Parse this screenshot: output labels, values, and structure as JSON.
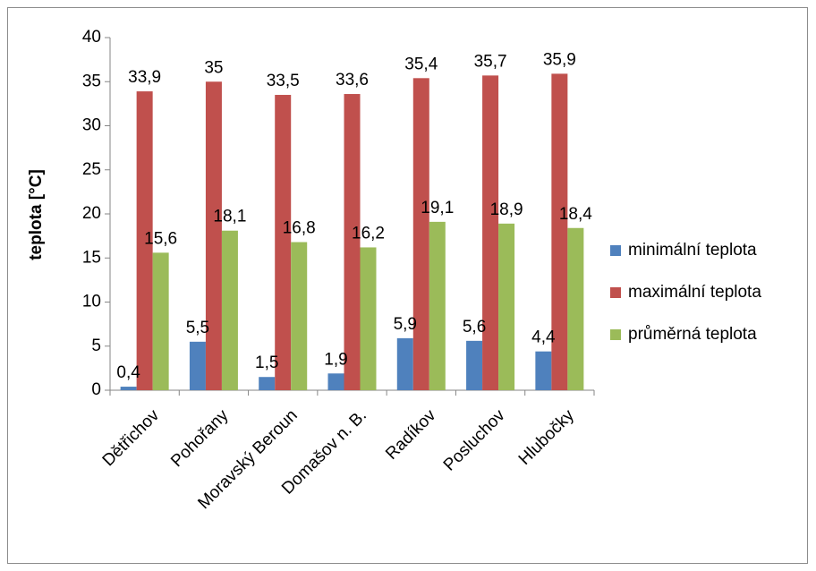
{
  "chart_data": {
    "type": "bar",
    "title": "",
    "xlabel": "",
    "ylabel": "teplota [°C]",
    "ylim": [
      0,
      40
    ],
    "yticks": [
      "0",
      "5",
      "10",
      "15",
      "20",
      "25",
      "30",
      "35",
      "40"
    ],
    "grid": false,
    "legend_position": "right",
    "categories": [
      "Dětřichov",
      "Pohořany",
      "Moravský Beroun",
      "Domašov n. B.",
      "Radíkov",
      "Posluchov",
      "Hlubočky"
    ],
    "series": [
      {
        "name": "minimální teplota",
        "color": "#4f81bd",
        "values": [
          0.4,
          5.5,
          1.5,
          1.9,
          5.9,
          5.6,
          4.4
        ],
        "labels": [
          "0,4",
          "5,5",
          "1,5",
          "1,9",
          "5,9",
          "5,6",
          "4,4"
        ]
      },
      {
        "name": "maximální teplota",
        "color": "#c0504d",
        "values": [
          33.9,
          35,
          33.5,
          33.6,
          35.4,
          35.7,
          35.9
        ],
        "labels": [
          "33,9",
          "35",
          "33,5",
          "33,6",
          "35,4",
          "35,7",
          "35,9"
        ]
      },
      {
        "name": "průměrná teplota",
        "color": "#9bbb59",
        "values": [
          15.6,
          18.1,
          16.8,
          16.2,
          19.1,
          18.9,
          18.4
        ],
        "labels": [
          "15,6",
          "18,1",
          "16,8",
          "16,2",
          "19,1",
          "18,9",
          "18,4"
        ]
      }
    ]
  }
}
